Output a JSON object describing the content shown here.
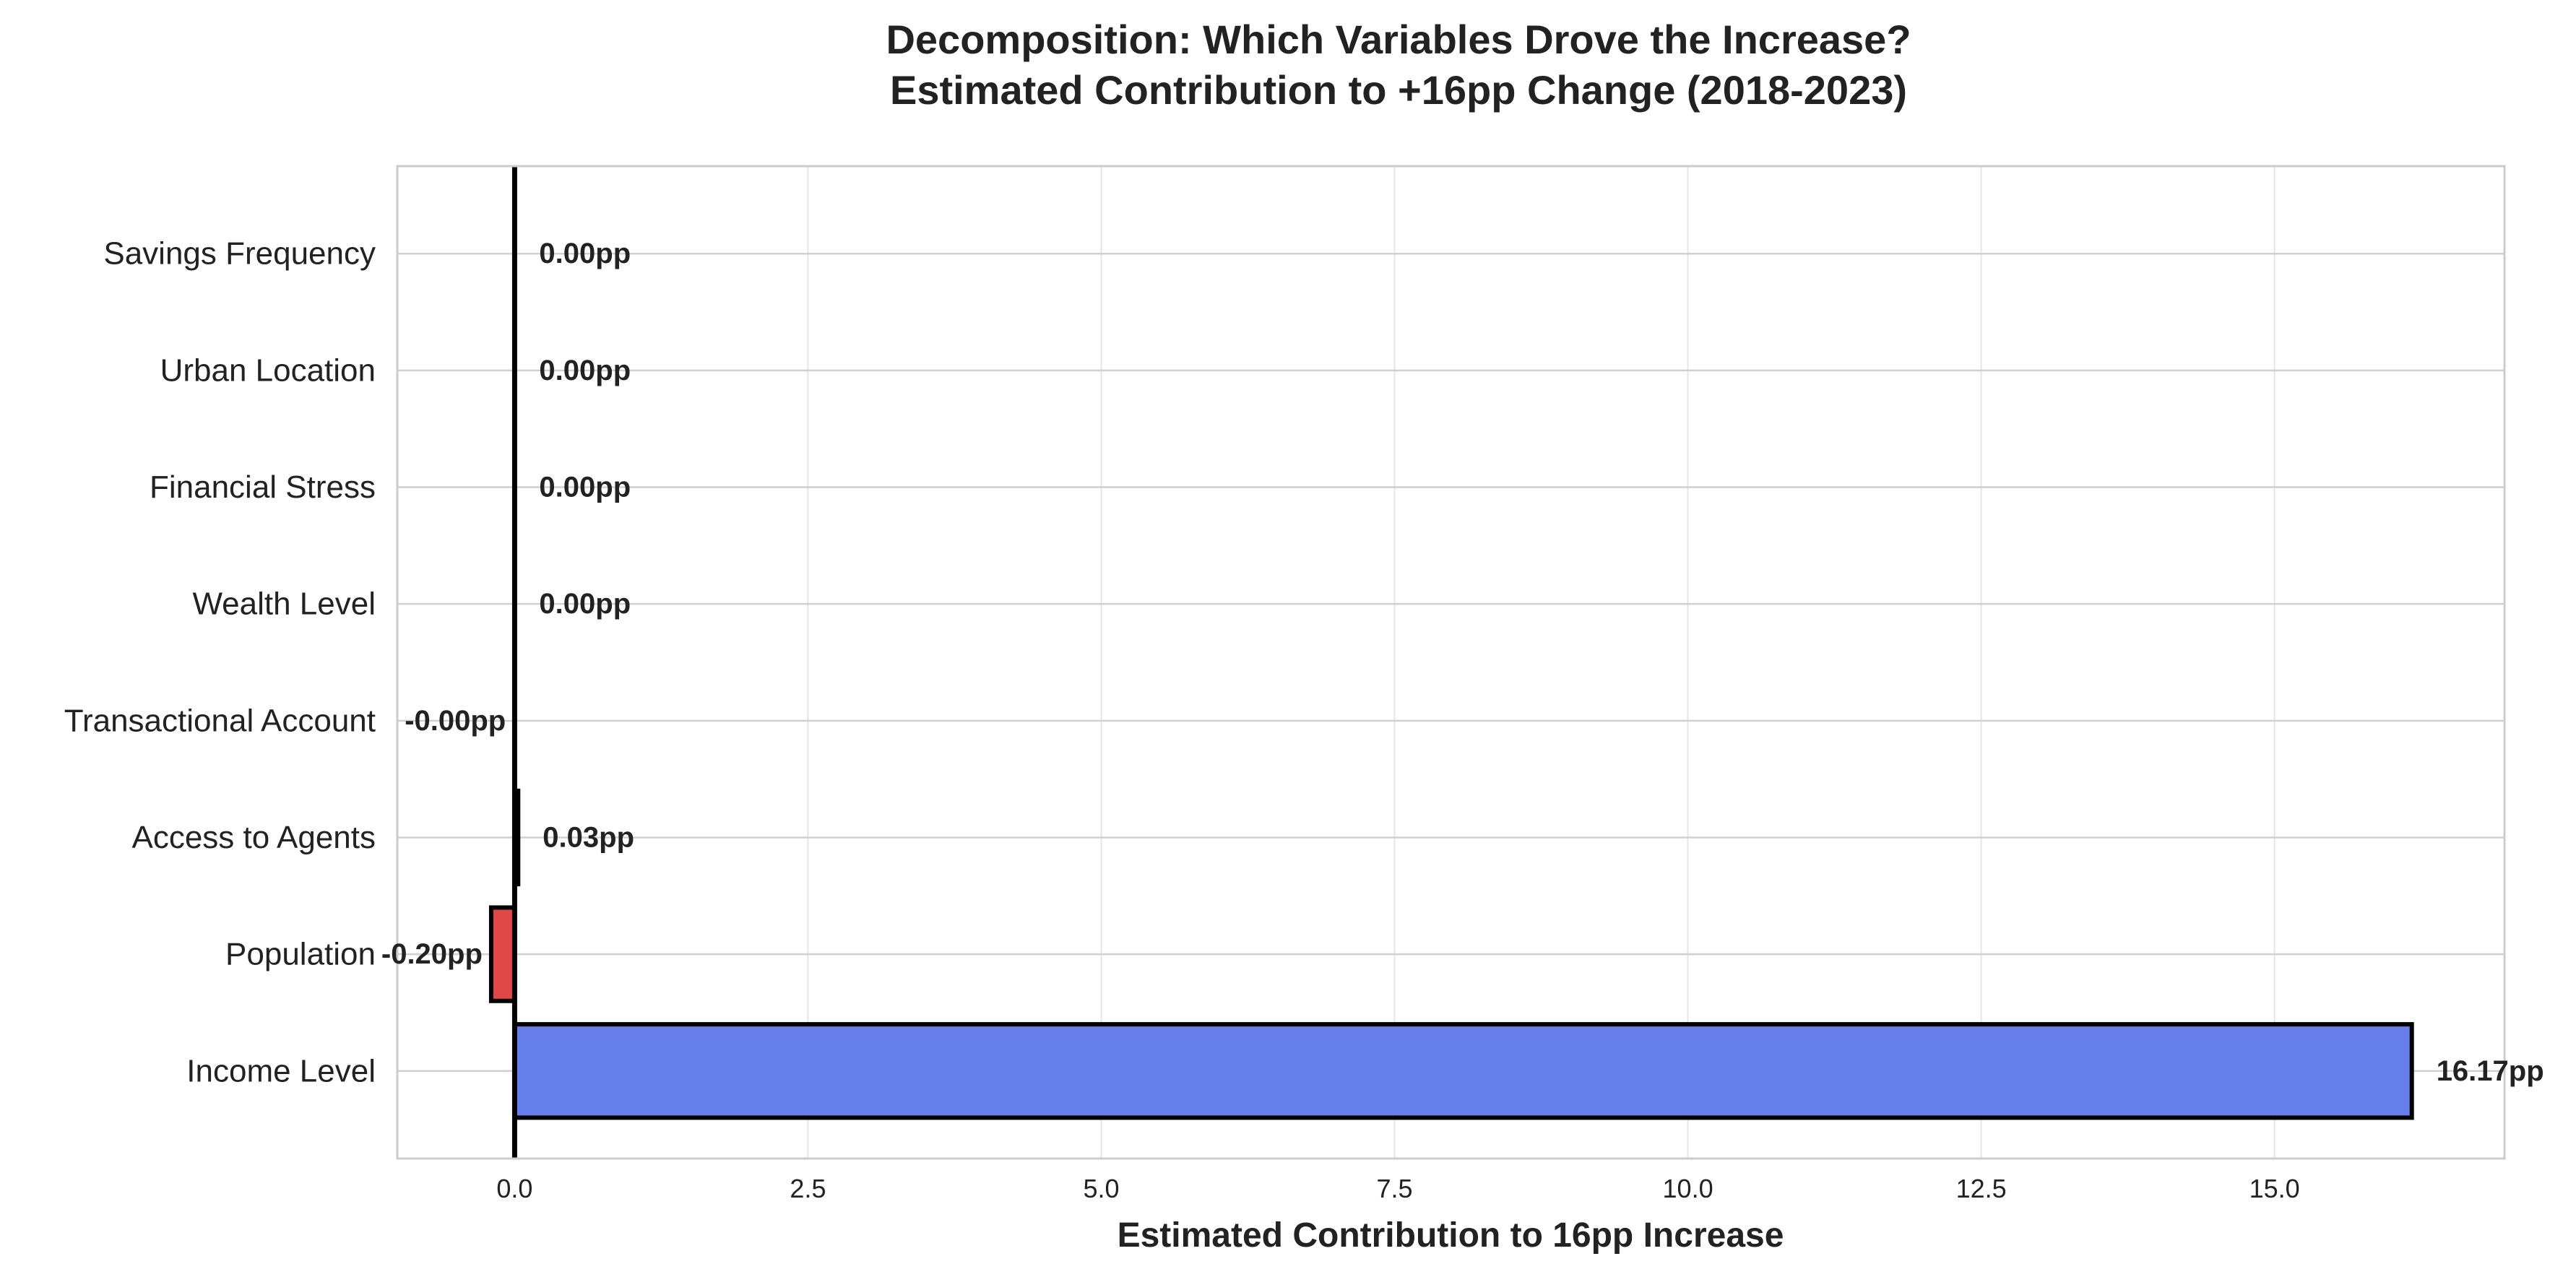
{
  "chart_data": {
    "type": "bar",
    "orientation": "horizontal",
    "title": [
      "Decomposition: Which Variables Drove the Increase?",
      "Estimated Contribution to +16pp Change (2018-2023)"
    ],
    "xlabel": "Estimated Contribution to 16pp Increase",
    "ylabel": "",
    "categories": [
      "Income Level",
      "Population",
      "Access to Agents",
      "Transactional Account",
      "Wealth Level",
      "Financial Stress",
      "Urban Location",
      "Savings Frequency"
    ],
    "values": [
      16.17,
      -0.2,
      0.03,
      -0.001,
      0.0,
      0.0,
      0.0,
      0.0
    ],
    "data_labels": [
      "16.17pp",
      "-0.20pp",
      "0.03pp",
      "-0.00pp",
      "0.00pp",
      "0.00pp",
      "0.00pp",
      "0.00pp"
    ],
    "xlim": [
      -1.0,
      16.96
    ],
    "xticks": [
      0.0,
      2.5,
      5.0,
      7.5,
      10.0,
      12.5,
      15.0
    ],
    "xtick_labels": [
      "0.0",
      "2.5",
      "5.0",
      "7.5",
      "10.0",
      "12.5",
      "15.0"
    ],
    "grid": true,
    "legend": "none",
    "colors": {
      "positive": "#667eea",
      "negative": "#e04848",
      "bar_edge": "#000000",
      "zero_line": "#000000",
      "grid": "#e6e6e6",
      "frame": "#cccccc",
      "text": "#222222"
    }
  }
}
